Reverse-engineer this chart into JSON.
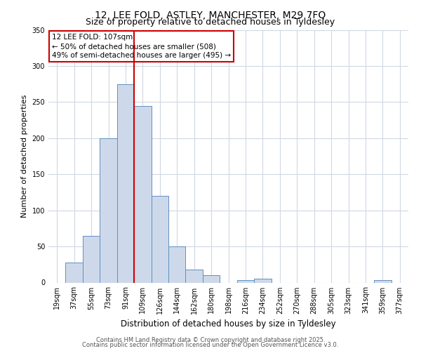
{
  "title_line1": "12, LEE FOLD, ASTLEY, MANCHESTER, M29 7FQ",
  "title_line2": "Size of property relative to detached houses in Tyldesley",
  "xlabel": "Distribution of detached houses by size in Tyldesley",
  "ylabel": "Number of detached properties",
  "bin_labels": [
    "19sqm",
    "37sqm",
    "55sqm",
    "73sqm",
    "91sqm",
    "109sqm",
    "126sqm",
    "144sqm",
    "162sqm",
    "180sqm",
    "198sqm",
    "216sqm",
    "234sqm",
    "252sqm",
    "270sqm",
    "288sqm",
    "305sqm",
    "323sqm",
    "341sqm",
    "359sqm",
    "377sqm"
  ],
  "bar_heights": [
    0,
    28,
    65,
    200,
    275,
    245,
    120,
    50,
    18,
    10,
    0,
    3,
    5,
    0,
    0,
    0,
    0,
    0,
    0,
    3,
    0
  ],
  "bar_color": "#cdd9ea",
  "bar_edge_color": "#6090c0",
  "vline_color": "#cc0000",
  "annotation_box_text": "12 LEE FOLD: 107sqm\n← 50% of detached houses are smaller (508)\n49% of semi-detached houses are larger (495) →",
  "annotation_box_color": "#cc0000",
  "ylim": [
    0,
    350
  ],
  "yticks": [
    0,
    50,
    100,
    150,
    200,
    250,
    300,
    350
  ],
  "footer_line1": "Contains HM Land Registry data © Crown copyright and database right 2025.",
  "footer_line2": "Contains public sector information licensed under the Open Government Licence v3.0.",
  "bg_color": "#ffffff",
  "grid_color": "#d0d8e4",
  "title1_fontsize": 10,
  "title2_fontsize": 9,
  "ylabel_fontsize": 8,
  "xlabel_fontsize": 8.5,
  "tick_fontsize": 7,
  "ann_fontsize": 7.5,
  "footer_fontsize": 6
}
